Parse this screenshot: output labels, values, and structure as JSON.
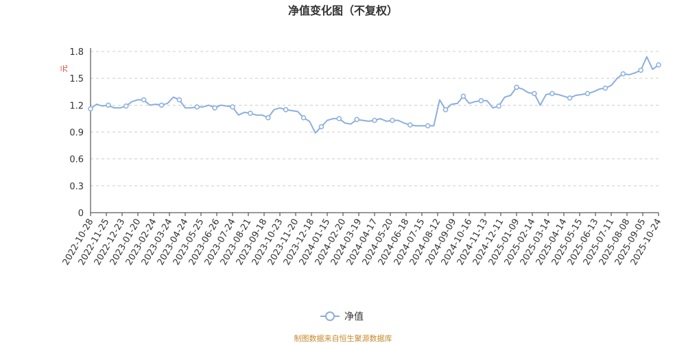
{
  "chart_data": {
    "type": "line",
    "title": "净值变化图（不复权）",
    "y_unit": "元",
    "ylim": [
      0,
      1.8
    ],
    "y_ticks": [
      "0",
      "0.3",
      "0.6",
      "0.9",
      "1.2",
      "1.5",
      "1.8"
    ],
    "x_ticks": [
      "2022-10-28",
      "2022-11-25",
      "2022-12-23",
      "2023-01-20",
      "2023-02-24",
      "2023-03-24",
      "2023-04-24",
      "2023-05-25",
      "2023-06-26",
      "2023-07-24",
      "2023-08-21",
      "2023-09-18",
      "2023-10-23",
      "2023-11-20",
      "2023-12-18",
      "2024-01-15",
      "2024-02-20",
      "2024-03-19",
      "2024-04-17",
      "2024-05-20",
      "2024-06-18",
      "2024-07-15",
      "2024-08-12",
      "2024-09-09",
      "2024-10-16",
      "2024-11-13",
      "2024-12-11",
      "2025-01-09",
      "2025-02-14",
      "2025-03-14",
      "2025-04-14",
      "2025-05-15",
      "2025-06-13",
      "2025-07-11",
      "2025-08-08",
      "2025-09-05",
      "2025-10-24"
    ],
    "grid": "horizontal-dashed",
    "legend_position": "bottom",
    "series": [
      {
        "name": "净值",
        "color": "#8aaee0",
        "values": [
          1.16,
          1.21,
          1.19,
          1.2,
          1.17,
          1.17,
          1.19,
          1.24,
          1.26,
          1.26,
          1.2,
          1.21,
          1.2,
          1.22,
          1.29,
          1.26,
          1.17,
          1.17,
          1.18,
          1.18,
          1.2,
          1.17,
          1.2,
          1.19,
          1.18,
          1.09,
          1.12,
          1.11,
          1.09,
          1.09,
          1.06,
          1.15,
          1.17,
          1.15,
          1.14,
          1.13,
          1.06,
          1.02,
          0.89,
          0.96,
          1.03,
          1.05,
          1.05,
          1.0,
          0.99,
          1.04,
          1.03,
          1.02,
          1.03,
          1.05,
          1.02,
          1.03,
          1.03,
          1.0,
          0.98,
          0.97,
          0.97,
          0.97,
          0.97,
          1.26,
          1.15,
          1.21,
          1.22,
          1.3,
          1.22,
          1.24,
          1.25,
          1.25,
          1.17,
          1.19,
          1.29,
          1.31,
          1.4,
          1.38,
          1.34,
          1.33,
          1.2,
          1.32,
          1.33,
          1.32,
          1.3,
          1.28,
          1.31,
          1.32,
          1.33,
          1.35,
          1.38,
          1.39,
          1.42,
          1.5,
          1.55,
          1.54,
          1.56,
          1.59,
          1.74,
          1.6,
          1.65
        ]
      }
    ]
  },
  "legend": {
    "label": "净值"
  },
  "footer": {
    "source": "制图数据来自恒生聚源数据库"
  }
}
